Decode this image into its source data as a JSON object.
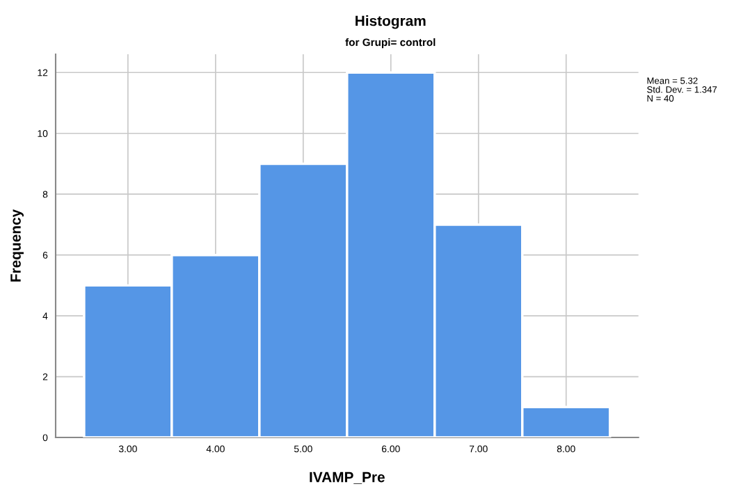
{
  "chart_data": {
    "type": "histogram",
    "title": "Histogram",
    "subtitle": "for Grupi= control",
    "xlabel": "IVAMP_Pre",
    "ylabel": "Frequency",
    "bins": [
      2.5,
      3.5,
      4.5,
      5.5,
      6.5,
      7.5,
      8.5
    ],
    "values": [
      5,
      6,
      9,
      12,
      7,
      1
    ],
    "color": "#5596e6",
    "xlim": [
      2.175,
      8.825
    ],
    "xticks": [
      {
        "value": 3,
        "label": "3.00"
      },
      {
        "value": 4,
        "label": "4.00"
      },
      {
        "value": 5,
        "label": "5.00"
      },
      {
        "value": 6,
        "label": "6.00"
      },
      {
        "value": 7,
        "label": "7.00"
      },
      {
        "value": 8,
        "label": "8.00"
      }
    ],
    "ylim": [
      0,
      12.6
    ],
    "yticks": [
      0,
      2,
      4,
      6,
      8,
      10,
      12
    ],
    "grid": true,
    "annotations": [
      "Mean = 5.32",
      "Std. Dev. = 1.347",
      "N = 40"
    ]
  }
}
